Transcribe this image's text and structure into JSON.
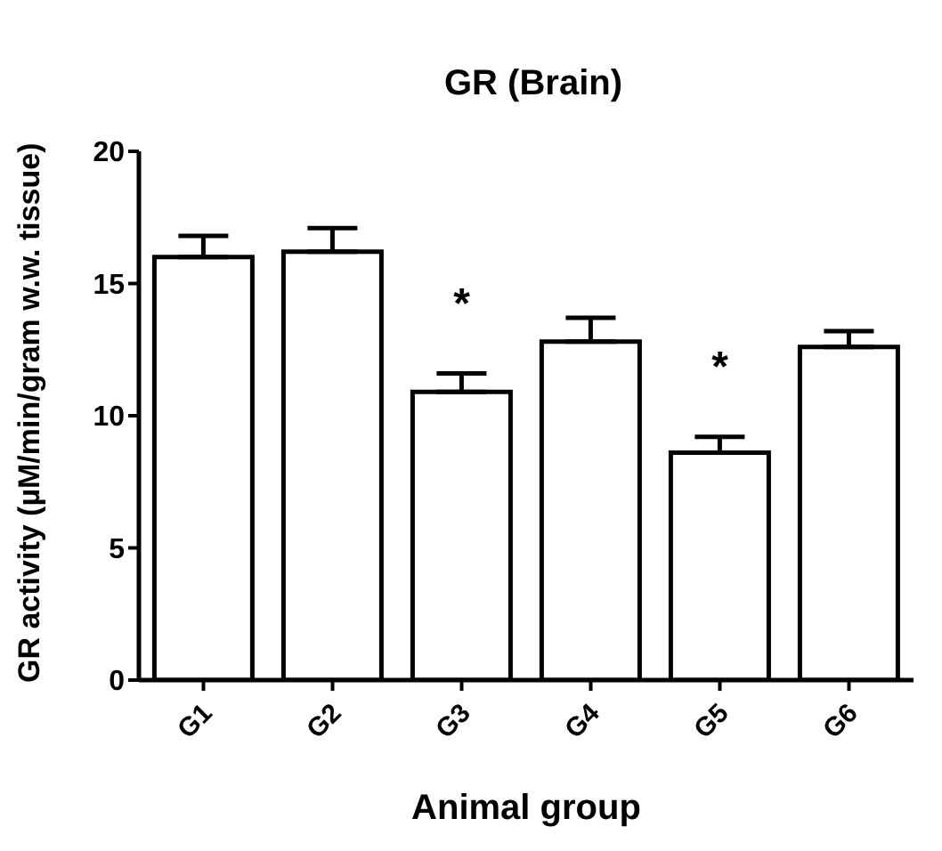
{
  "chart_data": {
    "type": "bar",
    "title": "GR (Brain)",
    "xlabel": "Animal group",
    "ylabel": "GR activity (µM/min/gram w.w. tissue)",
    "categories": [
      "G1",
      "G2",
      "G3",
      "G4",
      "G5",
      "G6"
    ],
    "values": [
      16.0,
      16.2,
      10.9,
      12.8,
      8.6,
      12.6
    ],
    "errors": [
      [
        16.0,
        16.8
      ],
      [
        16.2,
        17.1
      ],
      [
        10.9,
        11.6
      ],
      [
        12.8,
        13.7
      ],
      [
        8.6,
        9.2
      ],
      [
        12.6,
        13.2
      ]
    ],
    "color": "#ffffff",
    "ylim": [
      0,
      20
    ],
    "yticks": [
      0,
      5,
      10,
      15,
      20
    ],
    "grid": false,
    "legend": false,
    "annotations": [
      {
        "text": "*",
        "x": "G3",
        "y": 11.6
      },
      {
        "text": "*",
        "x": "G5",
        "y": 9.2
      }
    ]
  }
}
